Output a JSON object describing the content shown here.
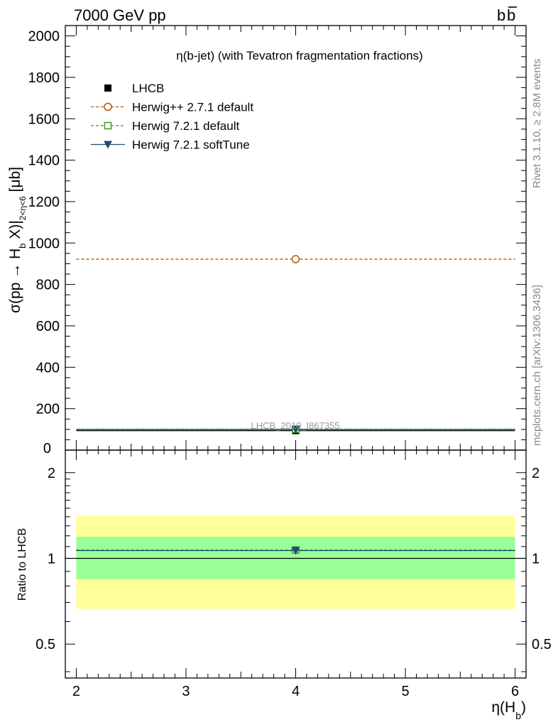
{
  "header": {
    "left": "7000 GeV pp",
    "right_base": "b",
    "right_bar": "b"
  },
  "side_labels": {
    "rivet": "Rivet 3.1.10, ≥ 2.8M events",
    "mcplots": "mcplots.cern.ch [arXiv:1306.3436]"
  },
  "chart_data": [
    {
      "panel": "main",
      "type": "scatter",
      "title": "η(b-jet) (with Tevatron fragmentation fractions)",
      "analysis_label": "LHCB_2010_I867355",
      "ylabel": "σ(pp → H_b X)|_{2<η<6} [μb]",
      "ylabel_parts": {
        "pre": "σ(pp → H",
        "sub1": "b",
        "mid": " X)|",
        "sub2": "2<η<6",
        "post": " [μb]"
      },
      "xlim": [
        1.9,
        6.1
      ],
      "ylim": [
        0,
        2050
      ],
      "yticks": [
        200,
        400,
        600,
        800,
        1000,
        1200,
        1400,
        1600,
        1800,
        2000
      ],
      "ytick_labels": [
        "200",
        "400",
        "600",
        "800",
        "1000",
        "1200",
        "1400",
        "1600",
        "1800",
        "2000"
      ],
      "y_partial_label": "0",
      "series": [
        {
          "name": "LHCB",
          "marker": "filled-square",
          "color": "#000000",
          "x": [
            4.0
          ],
          "y": [
            94
          ],
          "xerr": [
            [
              2.0,
              6.0
            ]
          ],
          "line": "none"
        },
        {
          "name": "Herwig++ 2.7.1 default",
          "marker": "open-circle",
          "color": "#b35900",
          "x": [
            4.0
          ],
          "y": [
            922
          ],
          "xrange": [
            2.0,
            6.0
          ],
          "line": "dashed"
        },
        {
          "name": "Herwig 7.2.1 default",
          "marker": "open-square",
          "color": "#3a9a1a",
          "x": [
            4.0
          ],
          "y": [
            101
          ],
          "xrange": [
            2.0,
            6.0
          ],
          "line": "dashed"
        },
        {
          "name": "Herwig 7.2.1 softTune",
          "marker": "filled-triangle-down",
          "color": "#1b5068",
          "x": [
            4.0
          ],
          "y": [
            100
          ],
          "xrange": [
            2.0,
            6.0
          ],
          "line": "solid"
        }
      ],
      "legend": "top-left"
    },
    {
      "panel": "ratio",
      "type": "scatter",
      "ylabel": "Ratio to LHCB",
      "xlabel_base": "η(H",
      "xlabel_sub": "b",
      "xlabel_close": ")",
      "xlim": [
        1.9,
        6.1
      ],
      "ylim": [
        0.38,
        2.4
      ],
      "log_y": true,
      "xticks": [
        2,
        3,
        4,
        5,
        6
      ],
      "xtick_labels": [
        "2",
        "3",
        "4",
        "5",
        "6"
      ],
      "yticks": [
        0.5,
        1,
        2
      ],
      "ytick_labels": [
        "0.5",
        "1",
        "2"
      ],
      "bands": [
        {
          "kind": "total-uncertainty",
          "color": "#ffff99",
          "low": 0.665,
          "high": 1.41,
          "xrange": [
            2.0,
            6.0
          ]
        },
        {
          "kind": "stat-uncertainty",
          "color": "#99ff99",
          "low": 0.845,
          "high": 1.19,
          "xrange": [
            2.0,
            6.0
          ]
        }
      ],
      "series": [
        {
          "name": "Herwig 7.2.1 default",
          "marker": "open-square",
          "color": "#3a9a1a",
          "x": [
            4.0
          ],
          "y": [
            1.07
          ],
          "line": "dashed"
        },
        {
          "name": "Herwig 7.2.1 softTune",
          "marker": "filled-triangle-down",
          "color": "#1b5068",
          "x": [
            4.0
          ],
          "y": [
            1.065
          ],
          "line": "solid"
        }
      ]
    }
  ]
}
